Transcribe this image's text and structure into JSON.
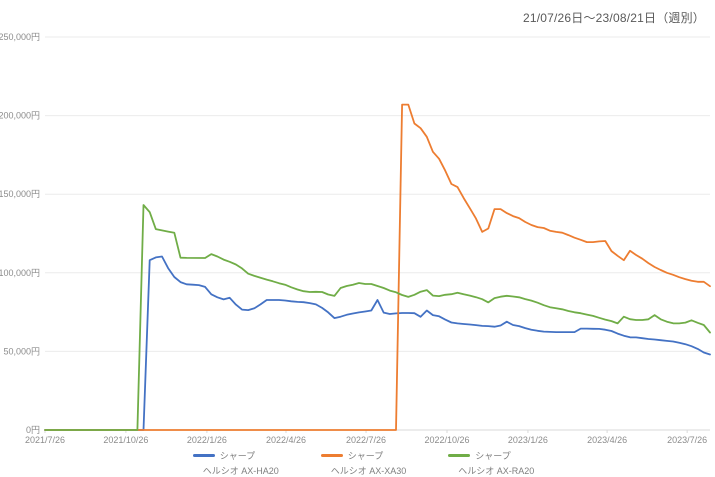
{
  "header": {
    "title": "21/07/26日～23/08/21日（週別）"
  },
  "legend": {
    "items": [
      {
        "brand": "シャープ",
        "model": "ヘルシオ AX-HA20",
        "color": "#4472c4"
      },
      {
        "brand": "シャープ",
        "model": "ヘルシオ AX-XA30",
        "color": "#ed7d31"
      },
      {
        "brand": "シャープ",
        "model": "ヘルシオ AX-RA20",
        "color": "#70ad47"
      }
    ]
  },
  "chart_data": {
    "type": "line",
    "title": "21/07/26日～23/08/21日（週別）",
    "currency": "JPY",
    "interval": "weekly",
    "grid": "horizontal",
    "legend_position": "bottom",
    "x_axis": {
      "unit": "weeks_since_start",
      "start_date": "2021-07-26",
      "end_date": "2023-08-21",
      "max_week": 108,
      "ticks": [
        {
          "week": 0,
          "label": "2021/7/26"
        },
        {
          "week": 13.14,
          "label": "2021/10/26"
        },
        {
          "week": 26.29,
          "label": "2022/1/26"
        },
        {
          "week": 39.14,
          "label": "2022/4/26"
        },
        {
          "week": 52.14,
          "label": "2022/7/26"
        },
        {
          "week": 65.29,
          "label": "2022/10/26"
        },
        {
          "week": 78.43,
          "label": "2023/1/26"
        },
        {
          "week": 91.29,
          "label": "2023/4/26"
        },
        {
          "week": 104.29,
          "label": "2023/7/26"
        }
      ]
    },
    "y_axis": {
      "min": 0,
      "max": 250000,
      "tick_step": 50000,
      "ticks": [
        {
          "value": 0,
          "label": "0円"
        },
        {
          "value": 50000,
          "label": "50,000円"
        },
        {
          "value": 100000,
          "label": "100,000円"
        },
        {
          "value": 150000,
          "label": "150,000円"
        },
        {
          "value": 200000,
          "label": "200,000円"
        },
        {
          "value": 250000,
          "label": "250,000円"
        }
      ]
    },
    "series": [
      {
        "name": "シャープ ヘルシオ AX-HA20",
        "brand": "シャープ",
        "model": "ヘルシオ AX-HA20",
        "color": "#4472c4",
        "points": [
          [
            0,
            0
          ],
          [
            16,
            0
          ],
          [
            17,
            108000
          ],
          [
            18,
            109800
          ],
          [
            19,
            110400
          ],
          [
            20,
            103000
          ],
          [
            21,
            97300
          ],
          [
            22,
            94100
          ],
          [
            23,
            92700
          ],
          [
            24,
            92400
          ],
          [
            25,
            92200
          ],
          [
            26,
            91000
          ],
          [
            27,
            86300
          ],
          [
            28,
            84400
          ],
          [
            29,
            83100
          ],
          [
            30,
            84100
          ],
          [
            31,
            79800
          ],
          [
            32,
            76600
          ],
          [
            33,
            76300
          ],
          [
            34,
            77400
          ],
          [
            35,
            79900
          ],
          [
            36,
            82700
          ],
          [
            38,
            82700
          ],
          [
            39,
            82400
          ],
          [
            40,
            81900
          ],
          [
            41,
            81500
          ],
          [
            42,
            81300
          ],
          [
            43,
            80700
          ],
          [
            44,
            79900
          ],
          [
            45,
            77700
          ],
          [
            46,
            74800
          ],
          [
            47,
            71200
          ],
          [
            48,
            72100
          ],
          [
            49,
            73300
          ],
          [
            50,
            74100
          ],
          [
            51,
            74800
          ],
          [
            52,
            75400
          ],
          [
            53,
            76000
          ],
          [
            54,
            82700
          ],
          [
            55,
            74700
          ],
          [
            56,
            73800
          ],
          [
            57,
            74200
          ],
          [
            58,
            74400
          ],
          [
            59,
            74400
          ],
          [
            60,
            74300
          ],
          [
            61,
            72000
          ],
          [
            62,
            76000
          ],
          [
            63,
            73100
          ],
          [
            64,
            72300
          ],
          [
            65,
            70200
          ],
          [
            66,
            68400
          ],
          [
            67,
            67800
          ],
          [
            68,
            67400
          ],
          [
            69,
            67100
          ],
          [
            70,
            66700
          ],
          [
            71,
            66200
          ],
          [
            72,
            66100
          ],
          [
            73,
            65700
          ],
          [
            74,
            66500
          ],
          [
            75,
            68900
          ],
          [
            76,
            66800
          ],
          [
            77,
            66100
          ],
          [
            78,
            64800
          ],
          [
            79,
            63800
          ],
          [
            80,
            63100
          ],
          [
            81,
            62600
          ],
          [
            82,
            62400
          ],
          [
            83,
            62300
          ],
          [
            86,
            62300
          ],
          [
            87,
            64500
          ],
          [
            88,
            64500
          ],
          [
            89,
            64400
          ],
          [
            90,
            64300
          ],
          [
            91,
            63800
          ],
          [
            92,
            63000
          ],
          [
            93,
            61300
          ],
          [
            94,
            60000
          ],
          [
            95,
            59000
          ],
          [
            96,
            58900
          ],
          [
            97,
            58400
          ],
          [
            98,
            57900
          ],
          [
            99,
            57600
          ],
          [
            100,
            57100
          ],
          [
            101,
            56700
          ],
          [
            102,
            56300
          ],
          [
            103,
            55500
          ],
          [
            104,
            54600
          ],
          [
            105,
            53300
          ],
          [
            106,
            51600
          ],
          [
            107,
            49300
          ],
          [
            108,
            48000
          ]
        ]
      },
      {
        "name": "シャープ ヘルシオ AX-XA30",
        "brand": "シャープ",
        "model": "ヘルシオ AX-XA30",
        "color": "#ed7d31",
        "points": [
          [
            0,
            0
          ],
          [
            57,
            0
          ],
          [
            58,
            207000
          ],
          [
            59,
            207000
          ],
          [
            60,
            195000
          ],
          [
            61,
            192000
          ],
          [
            62,
            186500
          ],
          [
            63,
            177000
          ],
          [
            64,
            172500
          ],
          [
            65,
            165000
          ],
          [
            66,
            156500
          ],
          [
            67,
            154500
          ],
          [
            68,
            147500
          ],
          [
            69,
            141000
          ],
          [
            70,
            134500
          ],
          [
            71,
            126000
          ],
          [
            72,
            128200
          ],
          [
            73,
            140500
          ],
          [
            74,
            140500
          ],
          [
            75,
            138000
          ],
          [
            76,
            136100
          ],
          [
            77,
            134800
          ],
          [
            78,
            132300
          ],
          [
            79,
            130400
          ],
          [
            80,
            129100
          ],
          [
            81,
            128500
          ],
          [
            82,
            126800
          ],
          [
            83,
            126000
          ],
          [
            84,
            125500
          ],
          [
            85,
            124000
          ],
          [
            86,
            122300
          ],
          [
            87,
            121000
          ],
          [
            88,
            119500
          ],
          [
            89,
            119500
          ],
          [
            90,
            120000
          ],
          [
            91,
            120200
          ],
          [
            92,
            113800
          ],
          [
            93,
            110800
          ],
          [
            94,
            108000
          ],
          [
            95,
            114000
          ],
          [
            96,
            111300
          ],
          [
            97,
            109000
          ],
          [
            98,
            106200
          ],
          [
            99,
            103700
          ],
          [
            100,
            101800
          ],
          [
            101,
            100000
          ],
          [
            102,
            98700
          ],
          [
            103,
            97200
          ],
          [
            104,
            96000
          ],
          [
            105,
            95000
          ],
          [
            106,
            94300
          ],
          [
            107,
            94300
          ],
          [
            108,
            91500
          ]
        ]
      },
      {
        "name": "シャープ ヘルシオ AX-RA20",
        "brand": "シャープ",
        "model": "ヘルシオ AX-RA20",
        "color": "#70ad47",
        "points": [
          [
            0,
            0
          ],
          [
            15,
            0
          ],
          [
            16,
            143100
          ],
          [
            17,
            138600
          ],
          [
            18,
            127800
          ],
          [
            19,
            127000
          ],
          [
            20,
            126200
          ],
          [
            21,
            125500
          ],
          [
            22,
            109600
          ],
          [
            23,
            109500
          ],
          [
            26,
            109400
          ],
          [
            27,
            111900
          ],
          [
            28,
            110400
          ],
          [
            29,
            108400
          ],
          [
            30,
            107000
          ],
          [
            31,
            105300
          ],
          [
            32,
            102800
          ],
          [
            33,
            99400
          ],
          [
            34,
            98000
          ],
          [
            35,
            96900
          ],
          [
            36,
            95700
          ],
          [
            37,
            94600
          ],
          [
            38,
            93400
          ],
          [
            39,
            92400
          ],
          [
            40,
            90800
          ],
          [
            41,
            89400
          ],
          [
            42,
            88300
          ],
          [
            43,
            87800
          ],
          [
            44,
            87900
          ],
          [
            45,
            87800
          ],
          [
            46,
            86200
          ],
          [
            47,
            85300
          ],
          [
            48,
            90300
          ],
          [
            49,
            91600
          ],
          [
            50,
            92400
          ],
          [
            51,
            93500
          ],
          [
            52,
            92900
          ],
          [
            53,
            92900
          ],
          [
            54,
            91600
          ],
          [
            55,
            90300
          ],
          [
            56,
            88700
          ],
          [
            57,
            87600
          ],
          [
            58,
            85900
          ],
          [
            59,
            84700
          ],
          [
            60,
            86000
          ],
          [
            61,
            88000
          ],
          [
            62,
            89000
          ],
          [
            63,
            85500
          ],
          [
            64,
            85200
          ],
          [
            65,
            86000
          ],
          [
            66,
            86400
          ],
          [
            67,
            87300
          ],
          [
            68,
            86300
          ],
          [
            69,
            85500
          ],
          [
            70,
            84500
          ],
          [
            71,
            83200
          ],
          [
            72,
            81200
          ],
          [
            73,
            83900
          ],
          [
            74,
            84800
          ],
          [
            75,
            85400
          ],
          [
            76,
            84900
          ],
          [
            77,
            84400
          ],
          [
            78,
            83300
          ],
          [
            79,
            82300
          ],
          [
            80,
            81000
          ],
          [
            81,
            79400
          ],
          [
            82,
            78100
          ],
          [
            83,
            77400
          ],
          [
            84,
            76800
          ],
          [
            85,
            75700
          ],
          [
            86,
            74900
          ],
          [
            87,
            74300
          ],
          [
            88,
            73400
          ],
          [
            89,
            72600
          ],
          [
            90,
            71400
          ],
          [
            91,
            70200
          ],
          [
            92,
            69300
          ],
          [
            93,
            67800
          ],
          [
            94,
            72100
          ],
          [
            95,
            70500
          ],
          [
            96,
            70000
          ],
          [
            97,
            70000
          ],
          [
            98,
            70400
          ],
          [
            99,
            73100
          ],
          [
            100,
            70400
          ],
          [
            101,
            68900
          ],
          [
            102,
            67900
          ],
          [
            103,
            67800
          ],
          [
            104,
            68300
          ],
          [
            105,
            69800
          ],
          [
            106,
            68200
          ],
          [
            107,
            66800
          ],
          [
            108,
            62000
          ]
        ]
      }
    ],
    "style": {
      "grid_color": "#ebebeb",
      "axis_tick_color": "#d9d9d9",
      "axis_label_color": "#8c8c8c",
      "title_color": "#595959",
      "line_width": 1.8
    }
  }
}
